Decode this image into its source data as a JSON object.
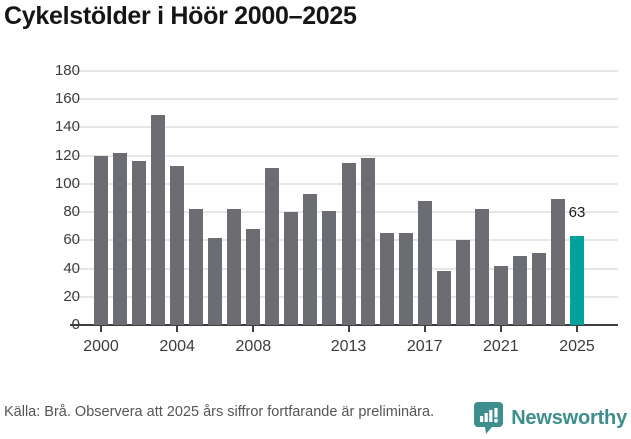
{
  "title": "Cykelstölder i Höör 2000–2025",
  "chart_data": {
    "type": "bar",
    "title": "Cykelstölder i Höör 2000–2025",
    "xlabel": "",
    "ylabel": "",
    "x": [
      2000,
      2001,
      2002,
      2003,
      2004,
      2005,
      2006,
      2007,
      2008,
      2009,
      2010,
      2011,
      2012,
      2013,
      2014,
      2015,
      2016,
      2017,
      2018,
      2019,
      2020,
      2021,
      2022,
      2023,
      2024,
      2025
    ],
    "values": [
      120,
      122,
      116,
      149,
      113,
      82,
      62,
      82,
      68,
      111,
      80,
      93,
      81,
      115,
      118,
      65,
      65,
      88,
      38,
      60,
      82,
      42,
      49,
      51,
      89,
      63
    ],
    "highlight_index": 25,
    "highlight_label": "63",
    "ylim": [
      0,
      180
    ],
    "ytick_step": 20,
    "ytick_labels": [
      "0",
      "20",
      "40",
      "60",
      "80",
      "100",
      "120",
      "140",
      "160",
      "180"
    ],
    "xtick_years": [
      2000,
      2004,
      2008,
      2013,
      2017,
      2021,
      2025
    ],
    "xtick_labels": [
      "2000",
      "2004",
      "2008",
      "2013",
      "2017",
      "2021",
      "2025"
    ],
    "grid": true,
    "legend": "none",
    "colors": {
      "bar": "#6c6c73",
      "highlight": "#00a29a",
      "grid": "#e6e6e6",
      "axis": "#3f3f3f"
    }
  },
  "footer": {
    "source": "Källa: Brå. Observera att 2025 års siffror fortfarande är preliminära.",
    "brand": "Newsworthy",
    "brand_color": "#3d8e8c"
  }
}
